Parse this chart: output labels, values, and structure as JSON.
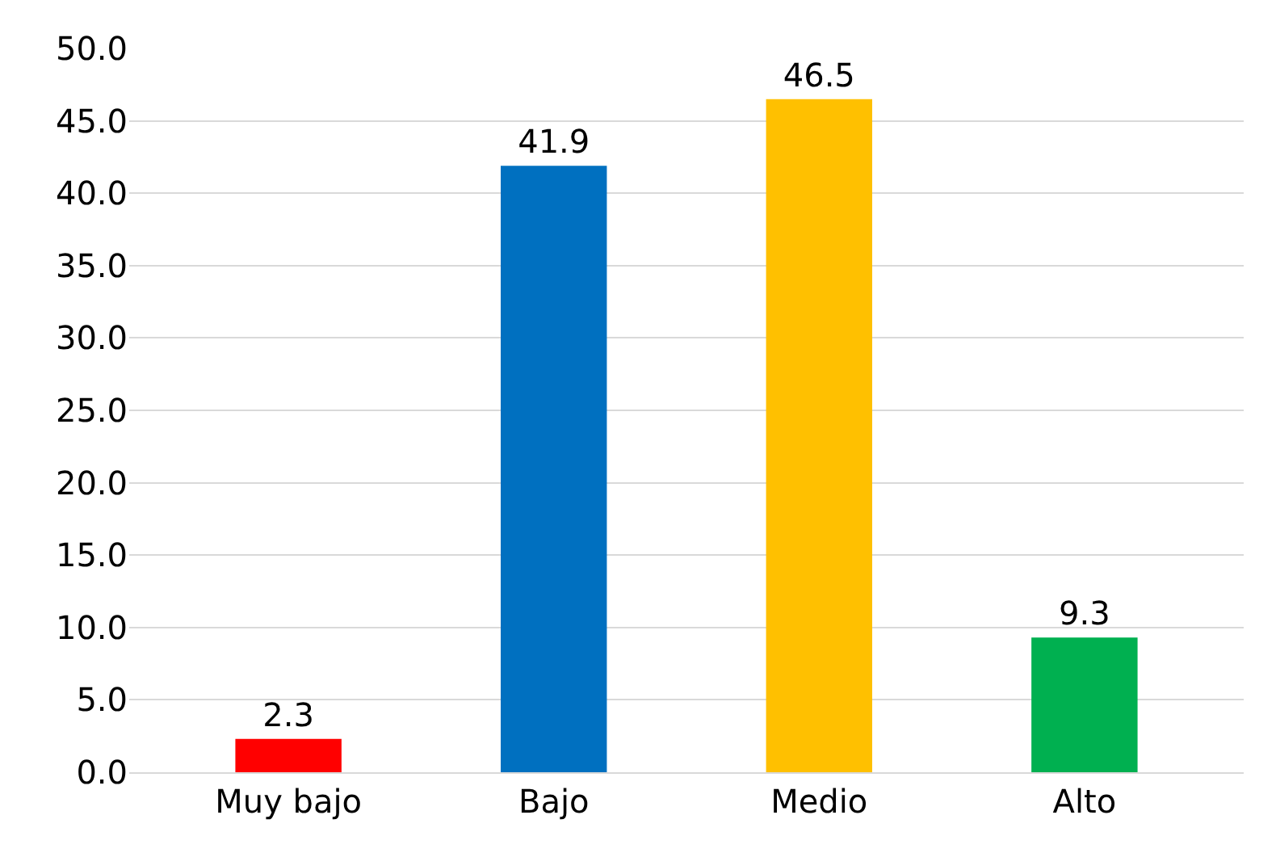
{
  "chart_data": {
    "type": "bar",
    "categories": [
      "Muy bajo",
      "Bajo",
      "Medio",
      "Alto"
    ],
    "values": [
      2.3,
      41.9,
      46.5,
      9.3
    ],
    "colors": [
      "#ff0000",
      "#0070c0",
      "#ffc000",
      "#00b050"
    ],
    "ylim": [
      0,
      50
    ],
    "yticks": [
      {
        "value": 0,
        "label": "0.0"
      },
      {
        "value": 5,
        "label": "5.0"
      },
      {
        "value": 10,
        "label": "10.0"
      },
      {
        "value": 15,
        "label": "15.0"
      },
      {
        "value": 20,
        "label": "20.0"
      },
      {
        "value": 25,
        "label": "25.0"
      },
      {
        "value": 30,
        "label": "30.0"
      },
      {
        "value": 35,
        "label": "35.0"
      },
      {
        "value": 40,
        "label": "40.0"
      },
      {
        "value": 45,
        "label": "45.0"
      },
      {
        "value": 50,
        "label": "50.0"
      }
    ],
    "grid": "y",
    "data_labels": true
  }
}
